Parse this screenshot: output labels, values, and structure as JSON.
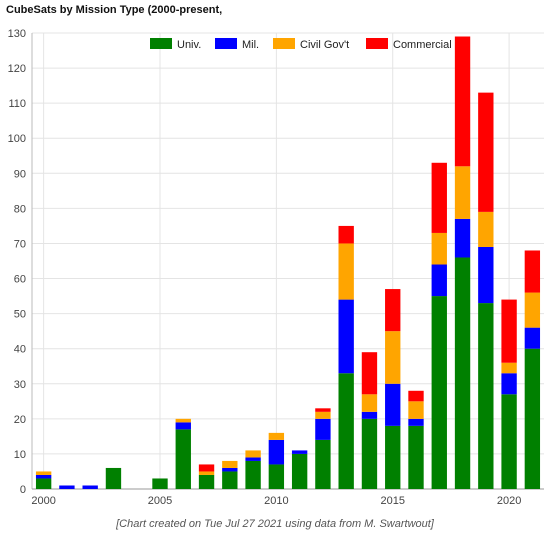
{
  "chart_data": {
    "type": "bar",
    "stacked": true,
    "title": "CubeSats by Mission Type (2000-present,",
    "footnote": "[Chart created on Tue Jul 27 2021 using data from M. Swartwout]",
    "xlabel": "",
    "ylabel": "",
    "ylim": [
      0,
      130
    ],
    "yticks": [
      0,
      10,
      20,
      30,
      40,
      50,
      60,
      70,
      80,
      90,
      100,
      110,
      120,
      130
    ],
    "xlim": [
      1999.5,
      2021.5
    ],
    "xticks": [
      2000,
      2005,
      2010,
      2015,
      2020
    ],
    "grid": true,
    "legend_position": "top-center",
    "x": [
      2000,
      2001,
      2002,
      2003,
      2004,
      2005,
      2006,
      2007,
      2008,
      2009,
      2010,
      2011,
      2012,
      2013,
      2014,
      2015,
      2016,
      2017,
      2018,
      2019,
      2020,
      2021
    ],
    "series": [
      {
        "name": "Univ.",
        "color": "#008000",
        "values": [
          3,
          0,
          0,
          6,
          0,
          3,
          17,
          4,
          5,
          8,
          7,
          10,
          14,
          33,
          20,
          18,
          18,
          55,
          66,
          53,
          27,
          40
        ]
      },
      {
        "name": "Mil.",
        "color": "#0000ff",
        "values": [
          1,
          1,
          1,
          0,
          0,
          0,
          2,
          0,
          1,
          1,
          7,
          1,
          6,
          21,
          2,
          12,
          2,
          9,
          11,
          16,
          6,
          6
        ]
      },
      {
        "name": "Civil Gov't",
        "color": "#ffa500",
        "values": [
          1,
          0,
          0,
          0,
          0,
          0,
          1,
          1,
          2,
          2,
          2,
          0,
          2,
          16,
          5,
          15,
          5,
          9,
          15,
          10,
          3,
          10
        ]
      },
      {
        "name": "Commercial",
        "color": "#ff0000",
        "values": [
          0,
          0,
          0,
          0,
          0,
          0,
          0,
          2,
          0,
          0,
          0,
          0,
          1,
          5,
          12,
          12,
          3,
          20,
          37,
          34,
          18,
          12
        ]
      }
    ]
  }
}
